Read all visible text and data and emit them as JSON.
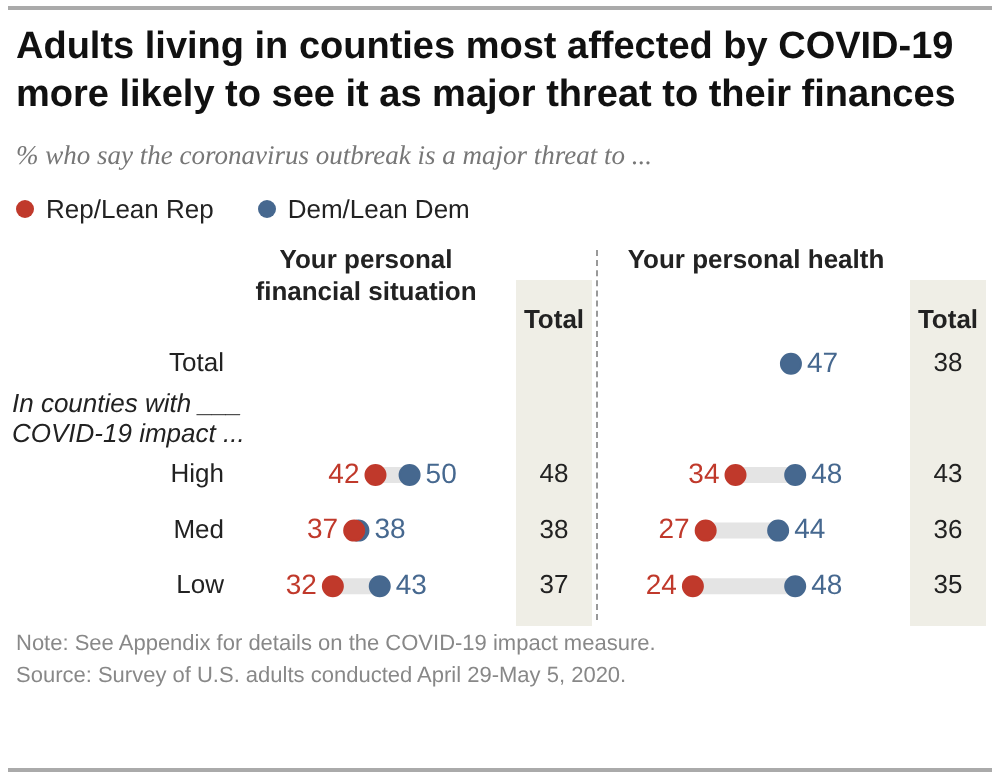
{
  "chart_data": {
    "type": "other",
    "title": "Adults living in counties most affected by COVID-19 more likely to see it as major threat to their finances",
    "subtitle": "% who say the coronavirus outbreak is a major threat to ...",
    "xlabel": "Your personal financial situation",
    "x2label": "Your personal health",
    "categories": [
      "Total",
      "High",
      "Med",
      "Low"
    ],
    "series": [
      {
        "name": "Rep/Lean Rep",
        "type": "scatter",
        "color": "#c0392b",
        "values": [
          null,
          42,
          37,
          32
        ]
      },
      {
        "name": "Dem/Lean Dem",
        "type": "scatter",
        "color": "#46688f",
        "values": [
          null,
          50,
          38,
          43
        ]
      },
      {
        "name": "Total",
        "type": "other",
        "color": "#efeee6",
        "values": [
          null,
          48,
          38,
          37
        ]
      },
      {
        "type": "scatter",
        "axis": "x2",
        "color": "#c0392b",
        "values": [
          null,
          34,
          27,
          24
        ]
      },
      {
        "type": "scatter",
        "axis": "x2",
        "color": "#46688f",
        "values": [
          47,
          48,
          44,
          48
        ]
      },
      {
        "name": "Total",
        "type": "other",
        "axis": "x2",
        "color": "#efeee6",
        "values": [
          38,
          43,
          36,
          35
        ]
      }
    ],
    "annotations": [
      "In counties with ___ COVID-19 impact ...",
      "Note: See Appendix for details on the COVID-19 impact measure.",
      "Source: Survey of U.S. adults conducted April 29-May 5, 2020."
    ],
    "data_labels": true,
    "legend": "top left"
  }
}
